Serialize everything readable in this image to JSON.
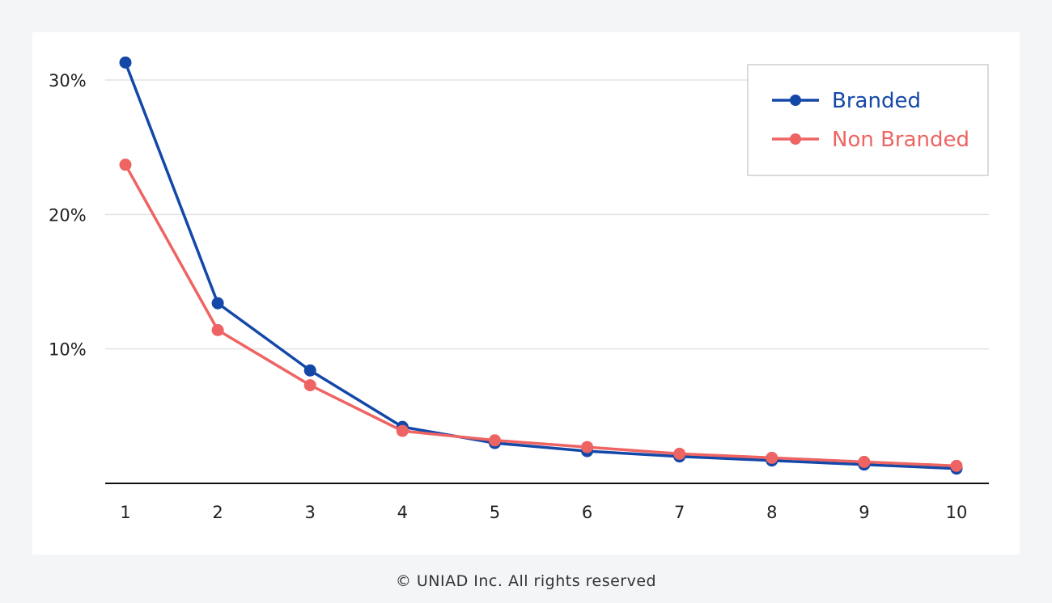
{
  "chart_data": {
    "type": "line",
    "title": "",
    "xlabel": "",
    "ylabel": "",
    "x": [
      1,
      2,
      3,
      4,
      5,
      6,
      7,
      8,
      9,
      10
    ],
    "x_tick_labels": [
      "1",
      "2",
      "3",
      "4",
      "5",
      "6",
      "7",
      "8",
      "9",
      "10"
    ],
    "ylim": [
      0,
      0.3
    ],
    "y_ticks": [
      0.1,
      0.2,
      0.3
    ],
    "y_tick_labels": [
      "10%",
      "20%",
      "30%"
    ],
    "grid": "horizontal",
    "legend_position": "top-right",
    "series": [
      {
        "name": "Branded",
        "color": "#1448a8",
        "values": [
          0.313,
          0.134,
          0.084,
          0.042,
          0.03,
          0.024,
          0.02,
          0.017,
          0.014,
          0.011
        ]
      },
      {
        "name": "Non Branded",
        "color": "#ee6462",
        "values": [
          0.237,
          0.114,
          0.073,
          0.039,
          0.032,
          0.027,
          0.022,
          0.019,
          0.016,
          0.013
        ]
      }
    ]
  },
  "footer": {
    "copyright": "© UNIAD Inc. All rights reserved"
  }
}
